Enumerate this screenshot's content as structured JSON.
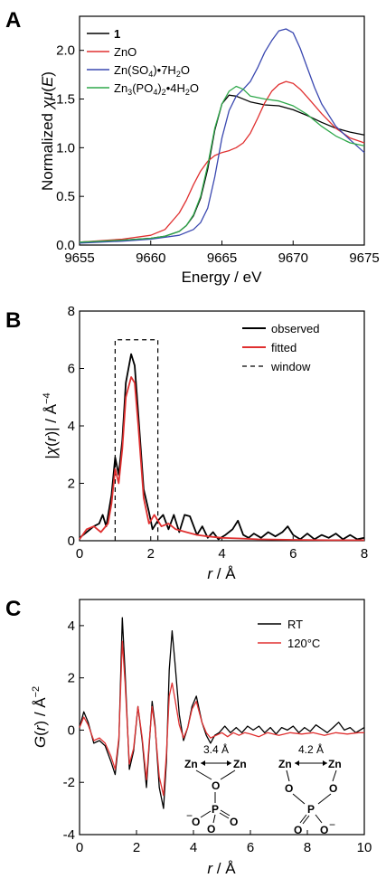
{
  "chart_data": [
    {
      "panel": "A",
      "type": "line",
      "xlabel": "Energy / eV",
      "ylabel": "Normalized χμ(E)",
      "xlim": [
        9655,
        9675
      ],
      "ylim": [
        0,
        2.35
      ],
      "xticks": [
        9655,
        9660,
        9665,
        9670,
        9675
      ],
      "xtick_labels": [
        "9655",
        "9660",
        "9665",
        "9670",
        "9675"
      ],
      "yticks": [
        0,
        0.5,
        1,
        1.5,
        2
      ],
      "ytick_labels": [
        "0.0",
        "0.5",
        "1.0",
        "1.5",
        "2.0"
      ],
      "legend_position": "top-left",
      "series": [
        {
          "name": "1",
          "color": "#000000",
          "x": [
            9655,
            9658,
            9660,
            9661,
            9662,
            9662.5,
            9663,
            9663.5,
            9664,
            9664.5,
            9665,
            9665.5,
            9666,
            9667,
            9668,
            9669,
            9670,
            9671,
            9672,
            9673,
            9674,
            9675
          ],
          "y": [
            0.03,
            0.05,
            0.07,
            0.09,
            0.14,
            0.2,
            0.3,
            0.48,
            0.78,
            1.18,
            1.45,
            1.54,
            1.53,
            1.47,
            1.44,
            1.43,
            1.39,
            1.33,
            1.26,
            1.2,
            1.16,
            1.13
          ]
        },
        {
          "name": "ZnO",
          "color": "#e03030",
          "x": [
            9655,
            9658,
            9660,
            9661,
            9662,
            9662.5,
            9663,
            9663.5,
            9664,
            9664.5,
            9665,
            9665.5,
            9666,
            9666.5,
            9667,
            9667.5,
            9668,
            9668.5,
            9669,
            9669.5,
            9670,
            9670.5,
            9671,
            9672,
            9673,
            9674,
            9675
          ],
          "y": [
            0.03,
            0.06,
            0.1,
            0.16,
            0.33,
            0.46,
            0.62,
            0.76,
            0.86,
            0.92,
            0.95,
            0.97,
            1.0,
            1.05,
            1.15,
            1.3,
            1.46,
            1.58,
            1.65,
            1.68,
            1.66,
            1.6,
            1.52,
            1.35,
            1.2,
            1.1,
            1.05
          ]
        },
        {
          "name": "Zn(SO4)·7H2O",
          "color": "#3a48b0",
          "x": [
            9655,
            9658,
            9660,
            9662,
            9663,
            9663.5,
            9664,
            9664.5,
            9665,
            9665.5,
            9666,
            9666.5,
            9667,
            9667.5,
            9668,
            9668.5,
            9669,
            9669.5,
            9670,
            9670.5,
            9671,
            9671.5,
            9672,
            9673,
            9674,
            9675
          ],
          "y": [
            0.02,
            0.04,
            0.06,
            0.1,
            0.16,
            0.23,
            0.38,
            0.7,
            1.1,
            1.38,
            1.53,
            1.6,
            1.68,
            1.82,
            1.98,
            2.1,
            2.2,
            2.22,
            2.18,
            2.02,
            1.82,
            1.62,
            1.45,
            1.22,
            1.08,
            0.95
          ]
        },
        {
          "name": "Zn3(PO4)2·4H2O",
          "color": "#2ea84a",
          "x": [
            9655,
            9658,
            9660,
            9661,
            9662,
            9662.5,
            9663,
            9663.5,
            9664,
            9664.5,
            9665,
            9665.5,
            9666,
            9666.5,
            9667,
            9668,
            9669,
            9670,
            9671,
            9672,
            9673,
            9674,
            9675
          ],
          "y": [
            0.03,
            0.05,
            0.07,
            0.09,
            0.14,
            0.2,
            0.31,
            0.5,
            0.82,
            1.2,
            1.45,
            1.58,
            1.63,
            1.6,
            1.53,
            1.5,
            1.48,
            1.43,
            1.34,
            1.22,
            1.12,
            1.05,
            1.02
          ]
        }
      ]
    },
    {
      "panel": "B",
      "type": "line",
      "xlabel": "r / Å",
      "ylabel": "|χ(r)| / Å⁻⁴",
      "xlim": [
        0,
        8
      ],
      "ylim": [
        0,
        8
      ],
      "xticks": [
        0,
        2,
        4,
        6,
        8
      ],
      "xtick_labels": [
        "0",
        "2",
        "4",
        "6",
        "8"
      ],
      "yticks": [
        0,
        2,
        4,
        6,
        8
      ],
      "ytick_labels": [
        "0",
        "2",
        "4",
        "6",
        "8"
      ],
      "legend_position": "top-right",
      "window": {
        "x": [
          1.0,
          2.2
        ],
        "y_top": 7.0
      },
      "series": [
        {
          "name": "observed",
          "color": "#000000",
          "x": [
            0,
            0.2,
            0.4,
            0.55,
            0.65,
            0.75,
            0.9,
            1.0,
            1.1,
            1.2,
            1.3,
            1.45,
            1.55,
            1.65,
            1.8,
            1.95,
            2.05,
            2.2,
            2.35,
            2.5,
            2.65,
            2.8,
            2.95,
            3.1,
            3.3,
            3.45,
            3.6,
            3.75,
            3.9,
            4.1,
            4.3,
            4.45,
            4.6,
            4.75,
            4.9,
            5.1,
            5.3,
            5.5,
            5.7,
            5.85,
            6.0,
            6.2,
            6.4,
            6.6,
            6.8,
            7.0,
            7.2,
            7.4,
            7.6,
            7.8,
            8.0
          ],
          "y": [
            0.1,
            0.3,
            0.5,
            0.6,
            0.9,
            0.5,
            1.6,
            2.9,
            2.3,
            3.5,
            5.5,
            6.5,
            6.1,
            4.4,
            1.8,
            1.0,
            0.4,
            0.7,
            0.9,
            0.4,
            0.9,
            0.3,
            0.9,
            0.85,
            0.2,
            0.5,
            0.1,
            0.3,
            0.05,
            0.2,
            0.4,
            0.7,
            0.2,
            0.1,
            0.25,
            0.1,
            0.3,
            0.15,
            0.3,
            0.5,
            0.2,
            0.05,
            0.25,
            0.05,
            0.2,
            0.1,
            0.25,
            0.05,
            0.2,
            0.05,
            0.1
          ]
        },
        {
          "name": "fitted",
          "color": "#e03030",
          "x": [
            0,
            0.2,
            0.4,
            0.6,
            0.8,
            0.9,
            1.0,
            1.1,
            1.2,
            1.3,
            1.45,
            1.55,
            1.65,
            1.8,
            1.95,
            2.1,
            2.3,
            2.5,
            2.7,
            3.0,
            3.3,
            3.6,
            4.0,
            4.5,
            5.0,
            6.0,
            7.0,
            8.0
          ],
          "y": [
            0.05,
            0.4,
            0.5,
            0.3,
            0.6,
            1.3,
            2.5,
            2.0,
            3.2,
            5.0,
            5.7,
            5.5,
            4.0,
            1.5,
            0.6,
            0.9,
            0.5,
            0.6,
            0.4,
            0.3,
            0.2,
            0.15,
            0.1,
            0.08,
            0.05,
            0.03,
            0.02,
            0.02
          ]
        }
      ],
      "legend": [
        "observed",
        "fitted",
        "window"
      ]
    },
    {
      "panel": "C",
      "type": "line",
      "xlabel": "r / Å",
      "ylabel": "G(r) / Å⁻²",
      "xlim": [
        0,
        10
      ],
      "ylim": [
        -4,
        5
      ],
      "xticks": [
        0,
        2,
        4,
        6,
        8,
        10
      ],
      "xtick_labels": [
        "0",
        "2",
        "4",
        "6",
        "8",
        "10"
      ],
      "yticks": [
        -4,
        -2,
        0,
        2,
        4
      ],
      "ytick_labels": [
        "-4",
        "-2",
        "0",
        "2",
        "4"
      ],
      "legend_position": "top-right",
      "series": [
        {
          "name": "RT",
          "color": "#000000",
          "x": [
            0,
            0.15,
            0.3,
            0.5,
            0.7,
            0.9,
            1.1,
            1.25,
            1.38,
            1.5,
            1.6,
            1.75,
            1.9,
            2.05,
            2.2,
            2.35,
            2.45,
            2.55,
            2.65,
            2.8,
            2.95,
            3.05,
            3.15,
            3.25,
            3.35,
            3.5,
            3.65,
            3.8,
            3.95,
            4.1,
            4.3,
            4.45,
            4.6,
            4.75,
            4.9,
            5.1,
            5.3,
            5.5,
            5.7,
            5.9,
            6.1,
            6.3,
            6.5,
            6.7,
            6.9,
            7.1,
            7.3,
            7.5,
            7.7,
            7.9,
            8.1,
            8.3,
            8.5,
            8.7,
            8.9,
            9.1,
            9.3,
            9.5,
            9.7,
            10.0
          ],
          "y": [
            0.1,
            0.7,
            0.3,
            -0.5,
            -0.4,
            -0.6,
            -1.2,
            -1.7,
            -0.4,
            4.3,
            2.2,
            -1.5,
            -0.8,
            0.9,
            -0.4,
            -2.2,
            -0.5,
            1.1,
            0.2,
            -2.2,
            -3.0,
            -1.2,
            2.3,
            3.8,
            2.6,
            0.6,
            -0.4,
            0.1,
            0.9,
            1.3,
            0.3,
            -0.2,
            -0.5,
            -0.2,
            -0.1,
            0.15,
            -0.1,
            0.1,
            -0.1,
            0.15,
            0.0,
            0.15,
            -0.1,
            0.1,
            -0.15,
            0.1,
            0.0,
            0.15,
            -0.1,
            0.1,
            -0.05,
            0.2,
            0.05,
            -0.1,
            0.1,
            0.3,
            0.0,
            0.1,
            -0.1,
            0.1
          ]
        },
        {
          "name": "120°C",
          "color": "#e03030",
          "x": [
            0,
            0.15,
            0.3,
            0.5,
            0.7,
            0.9,
            1.1,
            1.25,
            1.38,
            1.5,
            1.6,
            1.75,
            1.9,
            2.05,
            2.2,
            2.35,
            2.45,
            2.55,
            2.65,
            2.8,
            2.95,
            3.05,
            3.15,
            3.25,
            3.35,
            3.5,
            3.65,
            3.8,
            3.95,
            4.1,
            4.3,
            4.45,
            4.6,
            4.8,
            5.0,
            5.2,
            5.4,
            5.6,
            5.8,
            6.0,
            6.3,
            6.6,
            7.0,
            7.4,
            7.8,
            8.2,
            8.6,
            9.0,
            9.4,
            9.8,
            10.0
          ],
          "y": [
            0.1,
            0.5,
            0.2,
            -0.4,
            -0.3,
            -0.5,
            -1.0,
            -1.5,
            -0.3,
            3.4,
            1.8,
            -1.3,
            -0.7,
            0.9,
            -0.3,
            -1.9,
            -0.4,
            0.9,
            0.1,
            -1.8,
            -2.5,
            -0.9,
            1.3,
            1.8,
            1.2,
            0.2,
            -0.3,
            0.1,
            0.8,
            1.1,
            0.3,
            -0.1,
            -0.3,
            -0.2,
            -0.1,
            -0.25,
            -0.1,
            -0.2,
            -0.1,
            -0.15,
            -0.25,
            -0.1,
            -0.2,
            -0.1,
            -0.15,
            -0.1,
            -0.2,
            -0.1,
            -0.15,
            -0.1,
            -0.1
          ]
        }
      ],
      "annotations": {
        "left": {
          "distance": "3.4 Å",
          "zn1": "Zn",
          "zn2": "Zn",
          "o": "O",
          "p": "P",
          "o_bl": "O",
          "o_b": "O",
          "o_br": "O",
          "minus": "−"
        },
        "right": {
          "distance": "4.2 Å",
          "zn1": "Zn",
          "zn2": "Zn",
          "o1": "O",
          "o2": "O",
          "p": "P",
          "o_bl": "O",
          "o_br": "O",
          "minus": "−"
        }
      }
    }
  ],
  "panels": {
    "a": "A",
    "b": "B",
    "c": "C"
  },
  "legend_a": {
    "s1": "1",
    "s2": "ZnO",
    "s3_pre": "Zn(SO",
    "s3_sub": "4",
    "s3_post": ")•7H",
    "s3_sub2": "2",
    "s3_end": "O",
    "s4_pre": "Zn",
    "s4_sub1": "3",
    "s4_mid1": "(PO",
    "s4_sub2": "4",
    "s4_mid2": ")",
    "s4_sub3": "2",
    "s4_mid3": "•4H",
    "s4_sub4": "2",
    "s4_end": "O"
  },
  "ylabel_a": {
    "pre": "Normalized ",
    "chi": "χμ",
    "open": "(",
    "e": "E",
    "close": ")"
  },
  "ylabel_b": {
    "pre": "|",
    "chi": "χ",
    "open": "(",
    "r": "r",
    "close": ")| / Å",
    "exp": "−4"
  },
  "ylabel_c": {
    "g": "G",
    "open": "(",
    "r": "r",
    "close": ") / Å",
    "exp": "−2"
  },
  "xlabel_r": {
    "r": "r",
    "rest": " / Å"
  }
}
